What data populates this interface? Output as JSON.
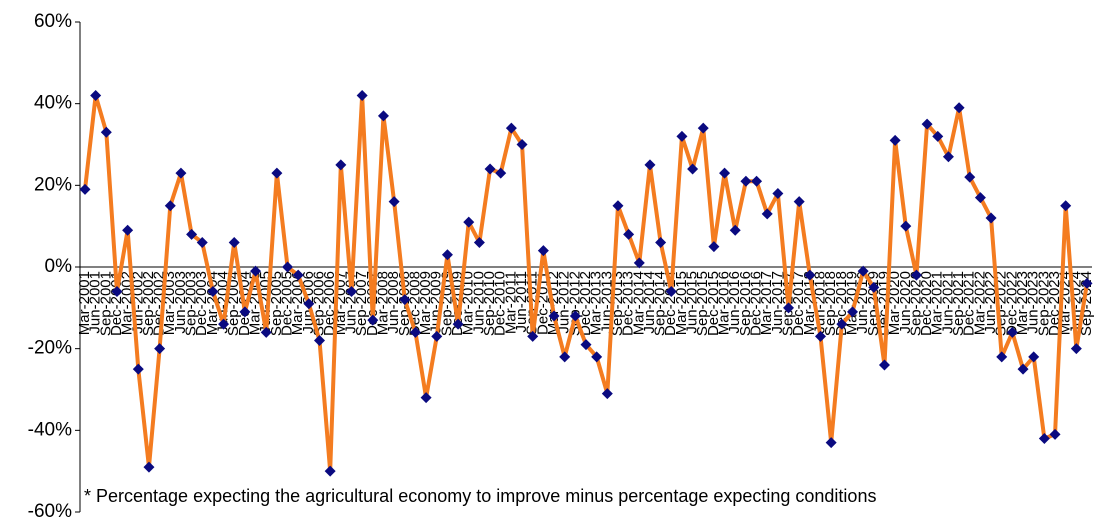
{
  "chart_data": {
    "type": "line",
    "categories": [
      "Mar-2001",
      "Jun-2001",
      "Sep-2001",
      "Dec-2001",
      "Mar-2002",
      "Jun-2002",
      "Sep-2002",
      "Dec-2002",
      "Mar-2003",
      "Jun-2003",
      "Sep-2003",
      "Dec-2003",
      "Mar-2004",
      "Jun-2004",
      "Sep-2004",
      "Dec-2004",
      "Mar-2005",
      "Jun-2005",
      "Sep-2005",
      "Dec-2005",
      "Mar-2006",
      "Jun-2006",
      "Sep-2006",
      "Dec-2006",
      "Mar-2007",
      "Jun-2007",
      "Sep-2007",
      "Dec-2007",
      "Mar-2008",
      "Jun-2008",
      "Sep-2008",
      "Dec-2008",
      "Mar-2009",
      "Jun-2009",
      "Sep-2009",
      "Dec-2009",
      "Mar-2010",
      "Jun-2010",
      "Sep-2010",
      "Dec-2010",
      "Mar-2011",
      "Jun-2011",
      "Sep-2011",
      "Dec-2011",
      "Mar-2012",
      "Jun-2012",
      "Sep-2012",
      "Dec-2012",
      "Mar-2013",
      "Jun-2013",
      "Sep-2013",
      "Dec-2013",
      "Mar-2014",
      "Jun-2014",
      "Sep-2014",
      "Dec-2014",
      "Mar-2015",
      "Jun-2015",
      "Sep-2015",
      "Dec-2015",
      "Mar-2016",
      "Jun-2016",
      "Sep-2016",
      "Dec-2016",
      "Mar-2017",
      "Jun-2017",
      "Sep-2017",
      "Dec-2017",
      "Mar-2018",
      "Jun-2018",
      "Sep-2018",
      "Dec-2018",
      "Mar-2019",
      "Jun-2019",
      "Sep-2019",
      "Dec-2019",
      "Mar-2020",
      "Jun-2020",
      "Sep-2020",
      "Dec-2020",
      "Mar-2021",
      "Jun-2021",
      "Sep-2021",
      "Dec-2021",
      "Mar-2022",
      "Jun-2022",
      "Sep-2022",
      "Dec-2022",
      "Mar-2023",
      "Jun-2023",
      "Sep-2023",
      "Dec-2023",
      "Mar-2024",
      "Jun-2024",
      "Sep-2024"
    ],
    "values": [
      19,
      42,
      33,
      -6,
      9,
      -25,
      -49,
      -20,
      15,
      23,
      8,
      6,
      -6,
      -14,
      6,
      -11,
      -1,
      -16,
      23,
      0,
      -2,
      -9,
      -18,
      -50,
      25,
      -6,
      42,
      -13,
      37,
      16,
      -8,
      -16,
      -32,
      -17,
      3,
      -14,
      11,
      6,
      24,
      23,
      34,
      30,
      -17,
      4,
      -12,
      -22,
      -12,
      -19,
      -22,
      -31,
      15,
      8,
      1,
      25,
      6,
      -6,
      32,
      24,
      34,
      5,
      23,
      9,
      21,
      21,
      13,
      18,
      -10,
      16,
      -2,
      -17,
      -43,
      -14,
      -11,
      -1,
      -5,
      -24,
      31,
      10,
      -2,
      35,
      32,
      27,
      39,
      22,
      17,
      12,
      -22,
      -16,
      -25,
      -22,
      -42,
      -41,
      15,
      -20,
      -4
    ],
    "color": "#f47c20",
    "marker_color": "#0a0a80",
    "ylim": [
      -60,
      60
    ],
    "yticks": [
      {
        "value": -60,
        "label": "-60%"
      },
      {
        "value": -40,
        "label": "-40%"
      },
      {
        "value": -20,
        "label": "-20%"
      },
      {
        "value": 0,
        "label": "0%"
      },
      {
        "value": 20,
        "label": "20%"
      },
      {
        "value": 40,
        "label": "40%"
      },
      {
        "value": 60,
        "label": "60%"
      }
    ],
    "footnote": "* Percentage expecting the agricultural economy to improve minus percentage expecting conditions"
  }
}
